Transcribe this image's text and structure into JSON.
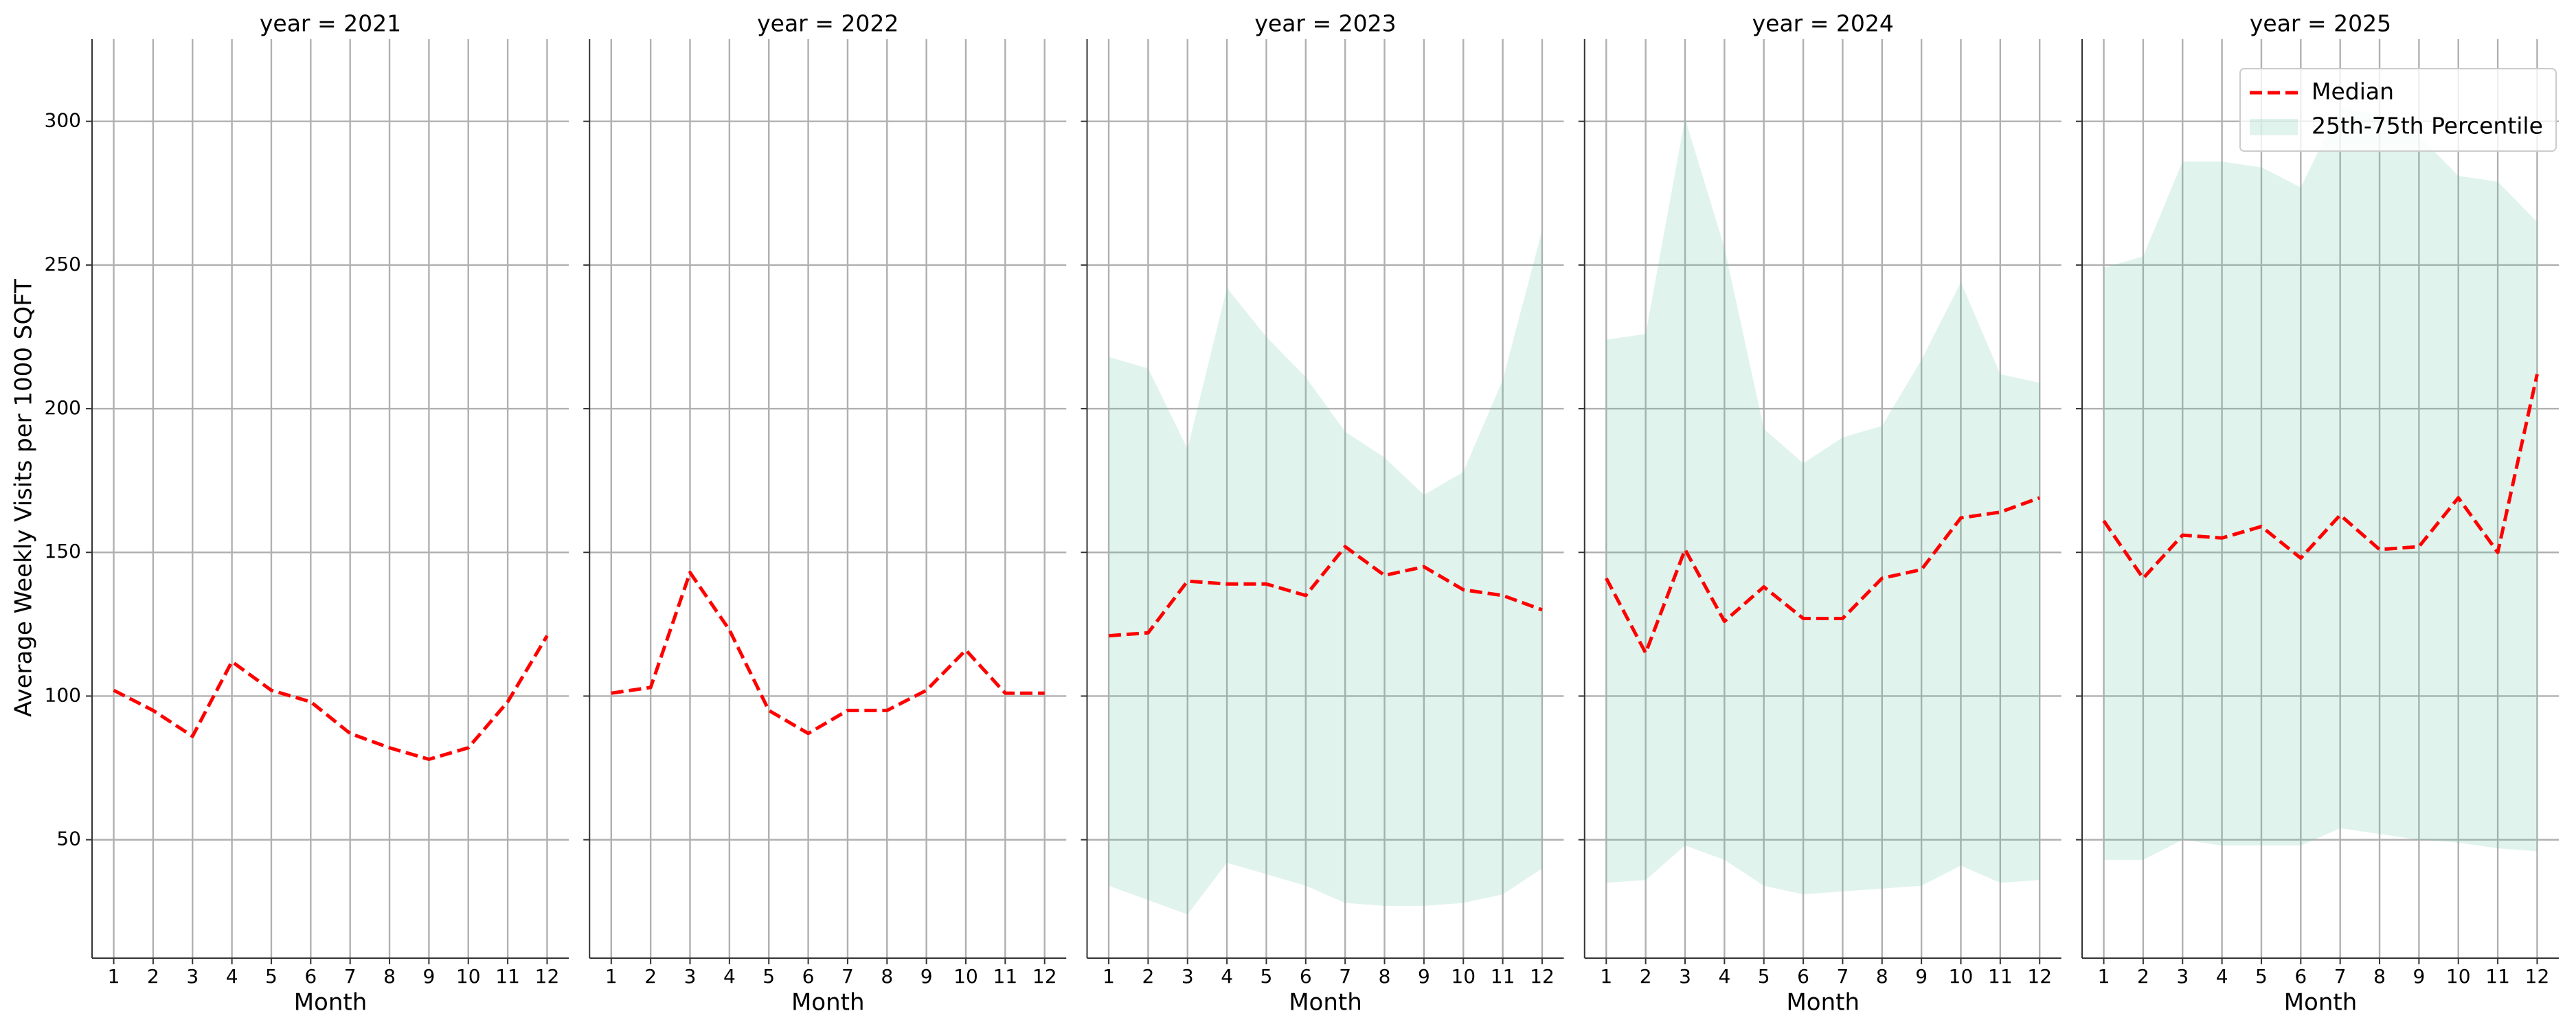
{
  "chart_data": [
    {
      "type": "line",
      "title": "year = 2021",
      "xlabel": "Month",
      "ylabel": "Average Weekly Visits per 1000 SQFT",
      "x": [
        1,
        2,
        3,
        4,
        5,
        6,
        7,
        8,
        9,
        10,
        11,
        12
      ],
      "xlim": [
        0.45,
        12.55
      ],
      "xticks": [
        1,
        2,
        3,
        4,
        5,
        6,
        7,
        8,
        9,
        10,
        11,
        12
      ],
      "ylim": [
        8.8,
        328.6
      ],
      "yticks": [
        50,
        100,
        150,
        200,
        250,
        300
      ],
      "grid": true,
      "series": [
        {
          "color": "#ff0000",
          "values": [
            102,
            95,
            86,
            112,
            102,
            98,
            87,
            82,
            78,
            82,
            98,
            121
          ]
        }
      ]
    },
    {
      "type": "line",
      "title": "year = 2022",
      "xlabel": "Month",
      "show_yticklabels": false,
      "x": [
        1,
        2,
        3,
        4,
        5,
        6,
        7,
        8,
        9,
        10,
        11,
        12
      ],
      "xlim": [
        0.45,
        12.55
      ],
      "xticks": [
        1,
        2,
        3,
        4,
        5,
        6,
        7,
        8,
        9,
        10,
        11,
        12
      ],
      "ylim": [
        8.8,
        328.6
      ],
      "yticks": [
        50,
        100,
        150,
        200,
        250,
        300
      ],
      "grid": true,
      "series": [
        {
          "color": "#ff0000",
          "values": [
            101,
            103,
            143,
            123,
            95,
            87,
            95,
            95,
            102,
            116,
            101,
            101
          ]
        }
      ]
    },
    {
      "type": "line",
      "title": "year = 2023",
      "xlabel": "Month",
      "show_yticklabels": false,
      "x": [
        1,
        2,
        3,
        4,
        5,
        6,
        7,
        8,
        9,
        10,
        11,
        12
      ],
      "xlim": [
        0.45,
        12.55
      ],
      "xticks": [
        1,
        2,
        3,
        4,
        5,
        6,
        7,
        8,
        9,
        10,
        11,
        12
      ],
      "ylim": [
        8.8,
        328.6
      ],
      "yticks": [
        50,
        100,
        150,
        200,
        250,
        300
      ],
      "grid": true,
      "series": [
        {
          "color": "#ff0000",
          "values": [
            121,
            122,
            140,
            139,
            139,
            135,
            152,
            142,
            145,
            137,
            135,
            130
          ]
        },
        {
          "color": "#66c2a5",
          "alpha": 0.2,
          "upper": [
            218,
            214,
            186,
            242,
            225,
            211,
            192,
            183,
            170,
            178,
            210,
            262
          ],
          "lower": [
            34,
            29,
            24,
            42,
            38,
            34,
            28,
            27,
            27,
            28,
            31,
            40
          ]
        }
      ]
    },
    {
      "type": "line",
      "title": "year = 2024",
      "xlabel": "Month",
      "show_yticklabels": false,
      "x": [
        1,
        2,
        3,
        4,
        5,
        6,
        7,
        8,
        9,
        10,
        11,
        12
      ],
      "xlim": [
        0.45,
        12.55
      ],
      "xticks": [
        1,
        2,
        3,
        4,
        5,
        6,
        7,
        8,
        9,
        10,
        11,
        12
      ],
      "ylim": [
        8.8,
        328.6
      ],
      "yticks": [
        50,
        100,
        150,
        200,
        250,
        300
      ],
      "grid": true,
      "series": [
        {
          "color": "#ff0000",
          "values": [
            141,
            115,
            151,
            126,
            138,
            127,
            127,
            141,
            144,
            162,
            164,
            169
          ]
        },
        {
          "color": "#66c2a5",
          "alpha": 0.2,
          "upper": [
            224,
            226,
            301,
            256,
            193,
            181,
            190,
            194,
            217,
            244,
            212,
            209
          ],
          "lower": [
            35,
            36,
            48,
            43,
            34,
            31,
            32,
            33,
            34,
            41,
            35,
            36
          ]
        }
      ]
    },
    {
      "type": "line",
      "title": "year = 2025",
      "xlabel": "Month",
      "show_yticklabels": false,
      "legend": "upper right",
      "x": [
        1,
        2,
        3,
        4,
        5,
        6,
        7,
        8,
        9,
        10,
        11,
        12
      ],
      "xlim": [
        0.45,
        12.55
      ],
      "xticks": [
        1,
        2,
        3,
        4,
        5,
        6,
        7,
        8,
        9,
        10,
        11,
        12
      ],
      "ylim": [
        8.8,
        328.6
      ],
      "yticks": [
        50,
        100,
        150,
        200,
        250,
        300
      ],
      "grid": true,
      "series": [
        {
          "name": "Median",
          "color": "#ff0000",
          "values": [
            161,
            141,
            156,
            155,
            159,
            148,
            163,
            151,
            152,
            169,
            150,
            212
          ]
        },
        {
          "name": "25th-75th Percentile",
          "color": "#66c2a5",
          "alpha": 0.2,
          "upper": [
            249,
            253,
            286,
            286,
            284,
            277,
            305,
            302,
            295,
            281,
            279,
            265
          ],
          "lower": [
            43,
            43,
            50,
            48,
            48,
            48,
            54,
            52,
            50,
            49,
            47,
            46
          ]
        }
      ]
    }
  ]
}
